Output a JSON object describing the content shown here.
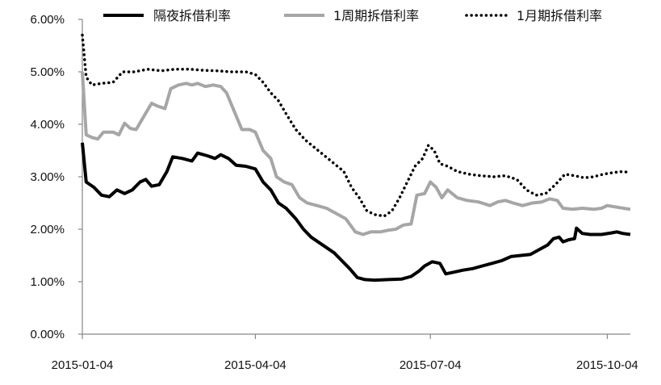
{
  "chart_data": {
    "type": "line",
    "title": "",
    "xlabel": "",
    "ylabel": "",
    "x_ticks": [
      "2015-01-04",
      "2015-04-04",
      "2015-07-04",
      "2015-10-04"
    ],
    "y_ticks": [
      "0.00%",
      "1.00%",
      "2.00%",
      "3.00%",
      "4.00%",
      "5.00%",
      "6.00%"
    ],
    "ylim": [
      0,
      6
    ],
    "xlim": [
      "2015-01-04",
      "2015-10-16"
    ],
    "grid": false,
    "legend_position": "top",
    "series": [
      {
        "name": "隔夜拆借利率",
        "color": "#000000",
        "style": "solid-thick",
        "points": [
          [
            "2015-01-04",
            3.65
          ],
          [
            "2015-01-06",
            2.9
          ],
          [
            "2015-01-10",
            2.8
          ],
          [
            "2015-01-14",
            2.65
          ],
          [
            "2015-01-18",
            2.62
          ],
          [
            "2015-01-22",
            2.75
          ],
          [
            "2015-01-26",
            2.68
          ],
          [
            "2015-01-30",
            2.75
          ],
          [
            "2015-02-03",
            2.9
          ],
          [
            "2015-02-06",
            2.95
          ],
          [
            "2015-02-09",
            2.82
          ],
          [
            "2015-02-13",
            2.85
          ],
          [
            "2015-02-17",
            3.1
          ],
          [
            "2015-02-20",
            3.38
          ],
          [
            "2015-02-25",
            3.35
          ],
          [
            "2015-03-02",
            3.3
          ],
          [
            "2015-03-05",
            3.45
          ],
          [
            "2015-03-10",
            3.4
          ],
          [
            "2015-03-14",
            3.35
          ],
          [
            "2015-03-17",
            3.42
          ],
          [
            "2015-03-21",
            3.35
          ],
          [
            "2015-03-25",
            3.22
          ],
          [
            "2015-03-30",
            3.2
          ],
          [
            "2015-04-04",
            3.15
          ],
          [
            "2015-04-08",
            2.9
          ],
          [
            "2015-04-12",
            2.75
          ],
          [
            "2015-04-16",
            2.5
          ],
          [
            "2015-04-20",
            2.4
          ],
          [
            "2015-04-25",
            2.2
          ],
          [
            "2015-04-29",
            2.0
          ],
          [
            "2015-05-03",
            1.85
          ],
          [
            "2015-05-07",
            1.75
          ],
          [
            "2015-05-11",
            1.65
          ],
          [
            "2015-05-15",
            1.55
          ],
          [
            "2015-05-19",
            1.4
          ],
          [
            "2015-05-23",
            1.25
          ],
          [
            "2015-05-27",
            1.08
          ],
          [
            "2015-05-31",
            1.04
          ],
          [
            "2015-06-05",
            1.03
          ],
          [
            "2015-06-12",
            1.04
          ],
          [
            "2015-06-19",
            1.05
          ],
          [
            "2015-06-24",
            1.1
          ],
          [
            "2015-06-28",
            1.2
          ],
          [
            "2015-07-01",
            1.3
          ],
          [
            "2015-07-05",
            1.38
          ],
          [
            "2015-07-09",
            1.35
          ],
          [
            "2015-07-12",
            1.15
          ],
          [
            "2015-07-16",
            1.18
          ],
          [
            "2015-07-21",
            1.22
          ],
          [
            "2015-07-26",
            1.25
          ],
          [
            "2015-07-31",
            1.3
          ],
          [
            "2015-08-05",
            1.35
          ],
          [
            "2015-08-10",
            1.4
          ],
          [
            "2015-08-15",
            1.48
          ],
          [
            "2015-08-20",
            1.5
          ],
          [
            "2015-08-25",
            1.52
          ],
          [
            "2015-08-30",
            1.62
          ],
          [
            "2015-09-03",
            1.7
          ],
          [
            "2015-09-06",
            1.82
          ],
          [
            "2015-09-09",
            1.85
          ],
          [
            "2015-09-11",
            1.76
          ],
          [
            "2015-09-14",
            1.8
          ],
          [
            "2015-09-17",
            1.82
          ],
          [
            "2015-09-18",
            2.02
          ],
          [
            "2015-09-21",
            1.92
          ],
          [
            "2015-09-25",
            1.9
          ],
          [
            "2015-10-01",
            1.9
          ],
          [
            "2015-10-06",
            1.93
          ],
          [
            "2015-10-09",
            1.95
          ],
          [
            "2015-10-12",
            1.92
          ],
          [
            "2015-10-16",
            1.9
          ]
        ]
      },
      {
        "name": "1周期拆借利率",
        "color": "#a6a6a6",
        "style": "solid-thick",
        "points": [
          [
            "2015-01-04",
            5.0
          ],
          [
            "2015-01-06",
            3.8
          ],
          [
            "2015-01-09",
            3.75
          ],
          [
            "2015-01-12",
            3.72
          ],
          [
            "2015-01-15",
            3.85
          ],
          [
            "2015-01-20",
            3.85
          ],
          [
            "2015-01-23",
            3.8
          ],
          [
            "2015-01-26",
            4.02
          ],
          [
            "2015-01-29",
            3.92
          ],
          [
            "2015-02-01",
            3.9
          ],
          [
            "2015-02-05",
            4.15
          ],
          [
            "2015-02-09",
            4.4
          ],
          [
            "2015-02-12",
            4.35
          ],
          [
            "2015-02-16",
            4.3
          ],
          [
            "2015-02-19",
            4.68
          ],
          [
            "2015-02-23",
            4.75
          ],
          [
            "2015-02-27",
            4.78
          ],
          [
            "2015-03-02",
            4.75
          ],
          [
            "2015-03-05",
            4.78
          ],
          [
            "2015-03-09",
            4.72
          ],
          [
            "2015-03-13",
            4.75
          ],
          [
            "2015-03-17",
            4.72
          ],
          [
            "2015-03-20",
            4.6
          ],
          [
            "2015-03-24",
            4.25
          ],
          [
            "2015-03-28",
            3.9
          ],
          [
            "2015-04-01",
            3.9
          ],
          [
            "2015-04-04",
            3.85
          ],
          [
            "2015-04-08",
            3.5
          ],
          [
            "2015-04-12",
            3.35
          ],
          [
            "2015-04-15",
            3.0
          ],
          [
            "2015-04-19",
            2.9
          ],
          [
            "2015-04-23",
            2.85
          ],
          [
            "2015-04-27",
            2.6
          ],
          [
            "2015-05-01",
            2.5
          ],
          [
            "2015-05-06",
            2.45
          ],
          [
            "2015-05-11",
            2.4
          ],
          [
            "2015-05-16",
            2.3
          ],
          [
            "2015-05-21",
            2.2
          ],
          [
            "2015-05-26",
            1.95
          ],
          [
            "2015-05-30",
            1.9
          ],
          [
            "2015-06-03",
            1.95
          ],
          [
            "2015-06-08",
            1.95
          ],
          [
            "2015-06-12",
            1.98
          ],
          [
            "2015-06-16",
            2.0
          ],
          [
            "2015-06-20",
            2.08
          ],
          [
            "2015-06-24",
            2.1
          ],
          [
            "2015-06-27",
            2.65
          ],
          [
            "2015-07-01",
            2.68
          ],
          [
            "2015-07-04",
            2.9
          ],
          [
            "2015-07-07",
            2.8
          ],
          [
            "2015-07-10",
            2.6
          ],
          [
            "2015-07-13",
            2.75
          ],
          [
            "2015-07-18",
            2.6
          ],
          [
            "2015-07-23",
            2.55
          ],
          [
            "2015-07-29",
            2.52
          ],
          [
            "2015-08-04",
            2.45
          ],
          [
            "2015-08-08",
            2.52
          ],
          [
            "2015-08-12",
            2.55
          ],
          [
            "2015-08-16",
            2.5
          ],
          [
            "2015-08-21",
            2.45
          ],
          [
            "2015-08-26",
            2.5
          ],
          [
            "2015-08-31",
            2.52
          ],
          [
            "2015-09-04",
            2.58
          ],
          [
            "2015-09-08",
            2.55
          ],
          [
            "2015-09-11",
            2.4
          ],
          [
            "2015-09-16",
            2.38
          ],
          [
            "2015-09-21",
            2.4
          ],
          [
            "2015-09-27",
            2.38
          ],
          [
            "2015-10-01",
            2.4
          ],
          [
            "2015-10-04",
            2.45
          ],
          [
            "2015-10-09",
            2.42
          ],
          [
            "2015-10-16",
            2.38
          ]
        ]
      },
      {
        "name": "1月期拆借利率",
        "color": "#000000",
        "style": "dotted",
        "points": [
          [
            "2015-01-04",
            5.7
          ],
          [
            "2015-01-06",
            4.9
          ],
          [
            "2015-01-09",
            4.75
          ],
          [
            "2015-01-14",
            4.78
          ],
          [
            "2015-01-20",
            4.8
          ],
          [
            "2015-01-25",
            5.0
          ],
          [
            "2015-01-31",
            5.0
          ],
          [
            "2015-02-07",
            5.05
          ],
          [
            "2015-02-14",
            5.02
          ],
          [
            "2015-02-21",
            5.05
          ],
          [
            "2015-03-01",
            5.05
          ],
          [
            "2015-03-08",
            5.03
          ],
          [
            "2015-03-15",
            5.02
          ],
          [
            "2015-03-22",
            5.0
          ],
          [
            "2015-03-30",
            5.0
          ],
          [
            "2015-04-04",
            4.95
          ],
          [
            "2015-04-08",
            4.8
          ],
          [
            "2015-04-12",
            4.6
          ],
          [
            "2015-04-16",
            4.45
          ],
          [
            "2015-04-20",
            4.2
          ],
          [
            "2015-04-25",
            3.9
          ],
          [
            "2015-04-30",
            3.7
          ],
          [
            "2015-05-05",
            3.55
          ],
          [
            "2015-05-10",
            3.4
          ],
          [
            "2015-05-15",
            3.25
          ],
          [
            "2015-05-20",
            3.1
          ],
          [
            "2015-05-24",
            2.8
          ],
          [
            "2015-05-28",
            2.6
          ],
          [
            "2015-06-01",
            2.35
          ],
          [
            "2015-06-05",
            2.28
          ],
          [
            "2015-06-10",
            2.25
          ],
          [
            "2015-06-14",
            2.35
          ],
          [
            "2015-06-18",
            2.6
          ],
          [
            "2015-06-22",
            2.9
          ],
          [
            "2015-06-26",
            3.2
          ],
          [
            "2015-06-30",
            3.35
          ],
          [
            "2015-07-03",
            3.6
          ],
          [
            "2015-07-06",
            3.5
          ],
          [
            "2015-07-09",
            3.25
          ],
          [
            "2015-07-13",
            3.2
          ],
          [
            "2015-07-18",
            3.1
          ],
          [
            "2015-07-24",
            3.05
          ],
          [
            "2015-07-30",
            3.02
          ],
          [
            "2015-08-06",
            3.0
          ],
          [
            "2015-08-12",
            3.02
          ],
          [
            "2015-08-18",
            2.95
          ],
          [
            "2015-08-23",
            2.75
          ],
          [
            "2015-08-28",
            2.65
          ],
          [
            "2015-09-02",
            2.68
          ],
          [
            "2015-09-07",
            2.85
          ],
          [
            "2015-09-12",
            3.05
          ],
          [
            "2015-09-17",
            3.02
          ],
          [
            "2015-09-22",
            2.98
          ],
          [
            "2015-09-27",
            3.0
          ],
          [
            "2015-10-02",
            3.05
          ],
          [
            "2015-10-07",
            3.08
          ],
          [
            "2015-10-12",
            3.1
          ],
          [
            "2015-10-16",
            3.08
          ]
        ]
      }
    ]
  }
}
